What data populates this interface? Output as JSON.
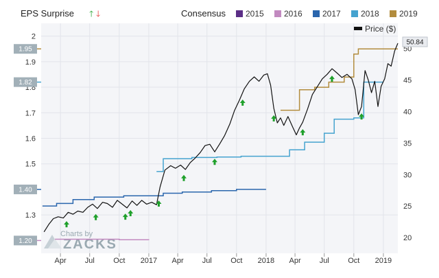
{
  "header": {
    "eps_surprise_label": "EPS Surprise",
    "consensus_label": "Consensus",
    "price_label": "Price ($)"
  },
  "colors": {
    "background": "#ffffff",
    "plot_background": "#f4f5f8",
    "grid": "#e2e4ea",
    "up_arrow": "#1fa02b",
    "down_arrow": "#e52a2a",
    "price_line": "#111111",
    "badge": "#a2b0b8",
    "watermark": "#9aa9b1"
  },
  "watermark": {
    "line1": "Charts by",
    "line2": "ZACKS"
  },
  "chart_data": {
    "type": "line",
    "x_tick_labels": [
      "Apr",
      "Jul",
      "Oct",
      "2017",
      "Apr",
      "Jul",
      "Oct",
      "2018",
      "Apr",
      "Jul",
      "Oct",
      "2019"
    ],
    "x_tick_dates": [
      "2016-04-01",
      "2016-07-01",
      "2016-10-01",
      "2017-01-01",
      "2017-04-01",
      "2017-07-01",
      "2017-10-01",
      "2018-01-01",
      "2018-04-01",
      "2018-07-01",
      "2018-10-01",
      "2019-01-01"
    ],
    "x_range": [
      "2016-02-01",
      "2019-02-15"
    ],
    "y_left": {
      "label": "",
      "range": [
        1.15,
        2.05
      ],
      "tick_labels": [
        "1.3",
        "1.5",
        "1.6",
        "1.7",
        "1.8",
        "1.9",
        "2"
      ],
      "tick_values": [
        1.3,
        1.5,
        1.6,
        1.7,
        1.8,
        1.9,
        2.0
      ],
      "badges": [
        {
          "value": 1.95,
          "text": "1.95",
          "color": "#b28c3d"
        },
        {
          "value": 1.82,
          "text": "1.82",
          "color": "#45a3cf"
        },
        {
          "value": 1.4,
          "text": "1.40",
          "color": "#2a66ad"
        },
        {
          "value": 1.2,
          "text": "1.20",
          "color": "#c28ac0"
        }
      ]
    },
    "y_right": {
      "label": "Price ($)",
      "range": [
        17.5,
        54.0
      ],
      "tick_labels": [
        "20",
        "25",
        "30",
        "35",
        "40",
        "45",
        "50"
      ],
      "tick_values": [
        20,
        25,
        30,
        35,
        40,
        45,
        50
      ],
      "last_price": "50.84"
    },
    "legend": {
      "placement": "top",
      "entries": [
        {
          "name": "2015",
          "color": "#5b2e86"
        },
        {
          "name": "2016",
          "color": "#c28ac0"
        },
        {
          "name": "2017",
          "color": "#2a66ad"
        },
        {
          "name": "2018",
          "color": "#45a3cf"
        },
        {
          "name": "2019",
          "color": "#b28c3d"
        }
      ]
    },
    "grid": true,
    "consensus_series": [
      {
        "name": "2016",
        "color": "#c28ac0",
        "points": [
          [
            "2016-03-15",
            1.205
          ],
          [
            "2016-06-01",
            1.205
          ],
          [
            "2016-10-01",
            1.203
          ],
          [
            "2017-01-01",
            1.202
          ]
        ]
      },
      {
        "name": "2017",
        "color": "#2a66ad",
        "points": [
          [
            "2016-02-05",
            1.335
          ],
          [
            "2016-03-20",
            1.345
          ],
          [
            "2016-05-10",
            1.36
          ],
          [
            "2016-07-15",
            1.37
          ],
          [
            "2016-10-15",
            1.375
          ],
          [
            "2017-02-05",
            1.375
          ],
          [
            "2017-02-15",
            1.385
          ],
          [
            "2017-04-15",
            1.39
          ],
          [
            "2017-07-15",
            1.395
          ],
          [
            "2017-10-01",
            1.4
          ],
          [
            "2018-01-01",
            1.4
          ]
        ]
      },
      {
        "name": "2018",
        "color": "#45a3cf",
        "points": [
          [
            "2017-01-25",
            1.47
          ],
          [
            "2017-02-15",
            1.52
          ],
          [
            "2017-05-01",
            1.52
          ],
          [
            "2017-05-15",
            1.525
          ],
          [
            "2017-08-01",
            1.527
          ],
          [
            "2017-10-15",
            1.53
          ],
          [
            "2017-12-15",
            1.53
          ],
          [
            "2018-02-01",
            1.53
          ],
          [
            "2018-03-15",
            1.555
          ],
          [
            "2018-05-01",
            1.585
          ],
          [
            "2018-07-01",
            1.62
          ],
          [
            "2018-08-01",
            1.675
          ],
          [
            "2018-10-01",
            1.68
          ],
          [
            "2018-11-01",
            1.82
          ],
          [
            "2019-01-01",
            1.82
          ]
        ]
      },
      {
        "name": "2019",
        "color": "#b28c3d",
        "points": [
          [
            "2018-02-15",
            1.71
          ],
          [
            "2018-04-01",
            1.71
          ],
          [
            "2018-04-15",
            1.79
          ],
          [
            "2018-06-01",
            1.8
          ],
          [
            "2018-07-15",
            1.82
          ],
          [
            "2018-09-01",
            1.84
          ],
          [
            "2018-10-01",
            1.93
          ],
          [
            "2018-10-15",
            1.95
          ],
          [
            "2019-02-15",
            1.95
          ]
        ]
      }
    ],
    "price_series": {
      "name": "Price ($)",
      "color": "#111111",
      "points": [
        [
          "2016-02-10",
          20.9
        ],
        [
          "2016-02-25",
          22.1
        ],
        [
          "2016-03-10",
          23.0
        ],
        [
          "2016-03-25",
          23.3
        ],
        [
          "2016-04-10",
          23.1
        ],
        [
          "2016-04-25",
          24.0
        ],
        [
          "2016-05-10",
          23.7
        ],
        [
          "2016-05-25",
          24.2
        ],
        [
          "2016-06-10",
          24.0
        ],
        [
          "2016-06-25",
          24.8
        ],
        [
          "2016-07-10",
          25.3
        ],
        [
          "2016-07-25",
          24.6
        ],
        [
          "2016-08-10",
          25.6
        ],
        [
          "2016-08-25",
          25.4
        ],
        [
          "2016-09-10",
          24.8
        ],
        [
          "2016-09-25",
          25.9
        ],
        [
          "2016-10-10",
          25.3
        ],
        [
          "2016-10-25",
          24.7
        ],
        [
          "2016-11-10",
          25.8
        ],
        [
          "2016-11-25",
          25.1
        ],
        [
          "2016-12-10",
          25.9
        ],
        [
          "2016-12-25",
          25.3
        ],
        [
          "2017-01-10",
          25.6
        ],
        [
          "2017-01-25",
          25.2
        ],
        [
          "2017-02-05",
          28.0
        ],
        [
          "2017-02-20",
          30.7
        ],
        [
          "2017-03-10",
          31.4
        ],
        [
          "2017-03-25",
          31.0
        ],
        [
          "2017-04-10",
          31.5
        ],
        [
          "2017-04-25",
          30.8
        ],
        [
          "2017-05-10",
          31.9
        ],
        [
          "2017-05-25",
          32.6
        ],
        [
          "2017-06-10",
          33.5
        ],
        [
          "2017-06-25",
          34.6
        ],
        [
          "2017-07-10",
          34.8
        ],
        [
          "2017-07-25",
          33.6
        ],
        [
          "2017-08-10",
          34.9
        ],
        [
          "2017-08-25",
          36.2
        ],
        [
          "2017-09-10",
          38.0
        ],
        [
          "2017-09-25",
          40.2
        ],
        [
          "2017-10-10",
          41.8
        ],
        [
          "2017-10-25",
          43.6
        ],
        [
          "2017-11-10",
          44.8
        ],
        [
          "2017-11-25",
          45.5
        ],
        [
          "2017-12-10",
          44.8
        ],
        [
          "2017-12-25",
          45.8
        ],
        [
          "2018-01-05",
          46.0
        ],
        [
          "2018-01-15",
          44.2
        ],
        [
          "2018-01-25",
          40.5
        ],
        [
          "2018-02-05",
          38.2
        ],
        [
          "2018-02-15",
          39.0
        ],
        [
          "2018-02-25",
          37.8
        ],
        [
          "2018-03-10",
          39.2
        ],
        [
          "2018-03-25",
          37.5
        ],
        [
          "2018-04-05",
          36.3
        ],
        [
          "2018-04-15",
          37.4
        ],
        [
          "2018-04-25",
          38.3
        ],
        [
          "2018-05-10",
          40.4
        ],
        [
          "2018-05-25",
          42.7
        ],
        [
          "2018-06-10",
          44.0
        ],
        [
          "2018-06-25",
          45.2
        ],
        [
          "2018-07-10",
          45.9
        ],
        [
          "2018-07-25",
          46.8
        ],
        [
          "2018-08-10",
          46.1
        ],
        [
          "2018-08-25",
          45.4
        ],
        [
          "2018-09-10",
          45.9
        ],
        [
          "2018-09-25",
          45.2
        ],
        [
          "2018-10-05",
          43.5
        ],
        [
          "2018-10-15",
          39.5
        ],
        [
          "2018-10-25",
          40.8
        ],
        [
          "2018-11-05",
          46.5
        ],
        [
          "2018-11-15",
          45.0
        ],
        [
          "2018-11-25",
          43.0
        ],
        [
          "2018-12-05",
          44.8
        ],
        [
          "2018-12-15",
          40.8
        ],
        [
          "2018-12-25",
          44.0
        ],
        [
          "2019-01-05",
          45.2
        ],
        [
          "2019-01-15",
          47.6
        ],
        [
          "2019-01-25",
          47.2
        ],
        [
          "2019-02-05",
          49.6
        ],
        [
          "2019-02-15",
          50.84
        ]
      ]
    },
    "eps_surprise_markers": [
      {
        "date": "2016-04-20",
        "direction": "up"
      },
      {
        "date": "2016-07-20",
        "direction": "up"
      },
      {
        "date": "2016-10-20",
        "direction": "up"
      },
      {
        "date": "2016-11-05",
        "direction": "up"
      },
      {
        "date": "2017-02-01",
        "direction": "up"
      },
      {
        "date": "2017-04-20",
        "direction": "up"
      },
      {
        "date": "2017-07-25",
        "direction": "up"
      },
      {
        "date": "2017-10-20",
        "direction": "up"
      },
      {
        "date": "2018-01-25",
        "direction": "up"
      },
      {
        "date": "2018-04-25",
        "direction": "up"
      },
      {
        "date": "2018-07-25",
        "direction": "up"
      },
      {
        "date": "2018-10-25",
        "direction": "up"
      }
    ]
  }
}
